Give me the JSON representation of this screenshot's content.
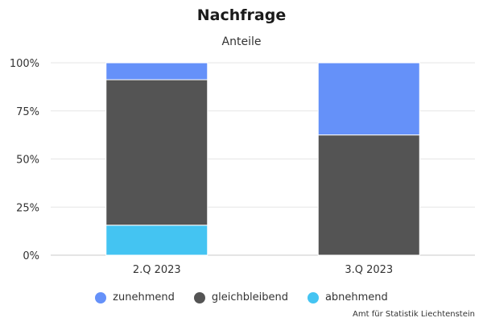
{
  "chart_data": {
    "type": "bar",
    "stacked": true,
    "title": "Nachfrage",
    "subtitle": "Anteile",
    "categories": [
      "2.Q 2023",
      "3.Q 2023"
    ],
    "series": [
      {
        "name": "abnehmend",
        "color": "#44c4f2",
        "values": [
          15.6,
          0
        ]
      },
      {
        "name": "gleichbleibend",
        "color": "#545454",
        "values": [
          75.6,
          62.5
        ]
      },
      {
        "name": "zunehmend",
        "color": "#6591f9",
        "values": [
          8.8,
          37.5
        ]
      }
    ],
    "legend_order": [
      "zunehmend",
      "gleichbleibend",
      "abnehmend"
    ],
    "ylim": [
      0,
      100
    ],
    "yticks": [
      "0%",
      "25%",
      "50%",
      "75%",
      "100%"
    ],
    "ytick_values": [
      0,
      25,
      50,
      75,
      100
    ],
    "grid": true,
    "legend_position": "bottom-center"
  },
  "credit": "Amt für Statistik Liechtenstein"
}
